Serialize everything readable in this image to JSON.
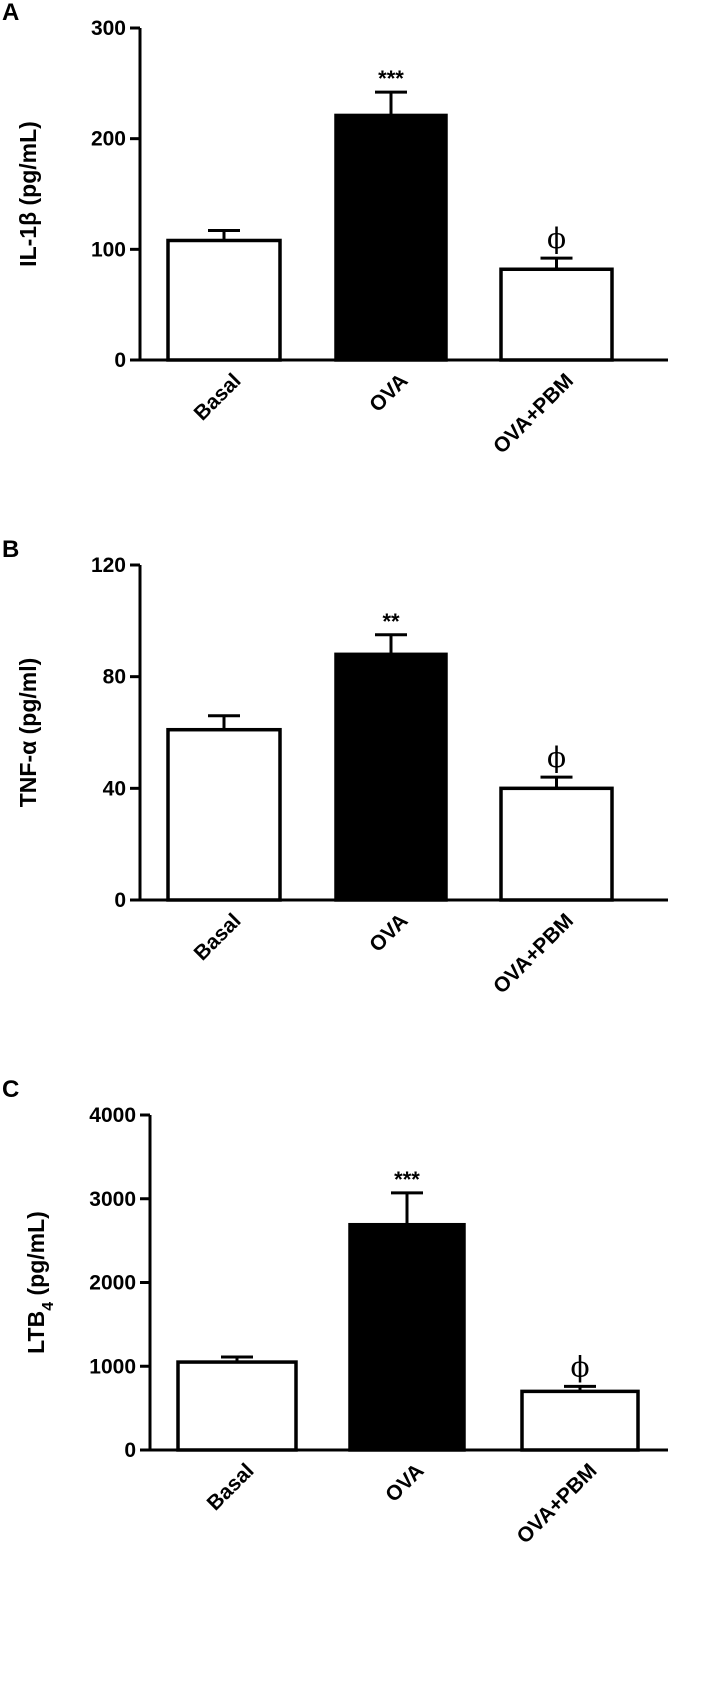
{
  "chart_data": [
    {
      "type": "bar",
      "panel": "A",
      "categories": [
        "Basal",
        "OVA",
        "OVA+PBM"
      ],
      "values": [
        108,
        221,
        82
      ],
      "errors": [
        9,
        21,
        10
      ],
      "bar_colors": [
        "#ffffff",
        "#000000",
        "#ffffff"
      ],
      "annotations": [
        "",
        "***",
        "ϕ"
      ],
      "ylabel": "IL-1β (pg/mL)",
      "ylim": [
        0,
        300
      ],
      "yticks": [
        0,
        100,
        200,
        300
      ],
      "ytick_labels": [
        "0",
        "100",
        "200",
        "300"
      ],
      "grid": false,
      "legend": "none"
    },
    {
      "type": "bar",
      "panel": "B",
      "categories": [
        "Basal",
        "OVA",
        "OVA+PBM"
      ],
      "values": [
        61,
        88,
        40
      ],
      "errors": [
        5,
        7,
        4
      ],
      "bar_colors": [
        "#ffffff",
        "#000000",
        "#ffffff"
      ],
      "annotations": [
        "",
        "**",
        "ϕ"
      ],
      "ylabel": "TNF-α (pg/ml)",
      "ylim": [
        0,
        120
      ],
      "yticks": [
        0,
        40,
        80,
        120
      ],
      "ytick_labels": [
        "0",
        "40",
        "80",
        "120"
      ],
      "grid": false,
      "legend": "none"
    },
    {
      "type": "bar",
      "panel": "C",
      "categories": [
        "Basal",
        "OVA",
        "OVA+PBM"
      ],
      "values": [
        1050,
        2690,
        700
      ],
      "errors": [
        60,
        380,
        60
      ],
      "bar_colors": [
        "#ffffff",
        "#000000",
        "#ffffff"
      ],
      "annotations": [
        "",
        "***",
        "ϕ"
      ],
      "ylabel": "LTB4 (pg/mL)",
      "ylabel_main": "LTB",
      "ylabel_sub": "4",
      "ylabel_rest": " (pg/mL)",
      "ylim": [
        0,
        4000
      ],
      "yticks": [
        0,
        1000,
        2000,
        3000,
        4000
      ],
      "ytick_labels": [
        "0",
        "1000",
        "2000",
        "3000",
        "4000"
      ],
      "grid": false,
      "legend": "none"
    }
  ]
}
